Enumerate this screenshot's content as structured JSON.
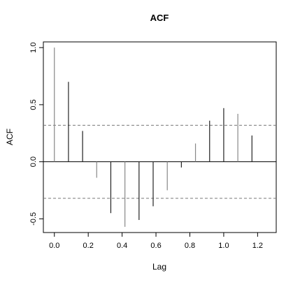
{
  "chart_data": {
    "type": "bar",
    "title": "ACF",
    "xlabel": "Lag",
    "ylabel": "ACF",
    "x": [
      0.0,
      0.0833,
      0.1667,
      0.25,
      0.3333,
      0.4167,
      0.5,
      0.5833,
      0.6667,
      0.75,
      0.8333,
      0.9167,
      1.0,
      1.0833,
      1.1667,
      1.25
    ],
    "values": [
      1.0,
      0.7,
      0.27,
      -0.14,
      -0.45,
      -0.57,
      -0.51,
      -0.39,
      -0.25,
      -0.05,
      0.16,
      0.36,
      0.47,
      0.42,
      0.23,
      0.0
    ],
    "xlim": [
      -0.065,
      1.31
    ],
    "ylim": [
      -0.62,
      1.05
    ],
    "xticks": [
      0.0,
      0.2,
      0.4,
      0.6,
      0.8,
      1.0,
      1.2
    ],
    "xtick_labels": [
      "0.0",
      "0.2",
      "0.4",
      "0.6",
      "0.8",
      "1.0",
      "1.2"
    ],
    "yticks": [
      -0.5,
      0.0,
      0.5,
      1.0
    ],
    "ytick_labels": [
      "-0.5",
      "0.0",
      "0.5",
      "1.0"
    ],
    "confidence_band": [
      -0.32,
      0.32
    ],
    "grid": false,
    "zero_line": true,
    "colors": {
      "spike": "#222222",
      "band": "#777777",
      "axis": "#000000"
    }
  }
}
